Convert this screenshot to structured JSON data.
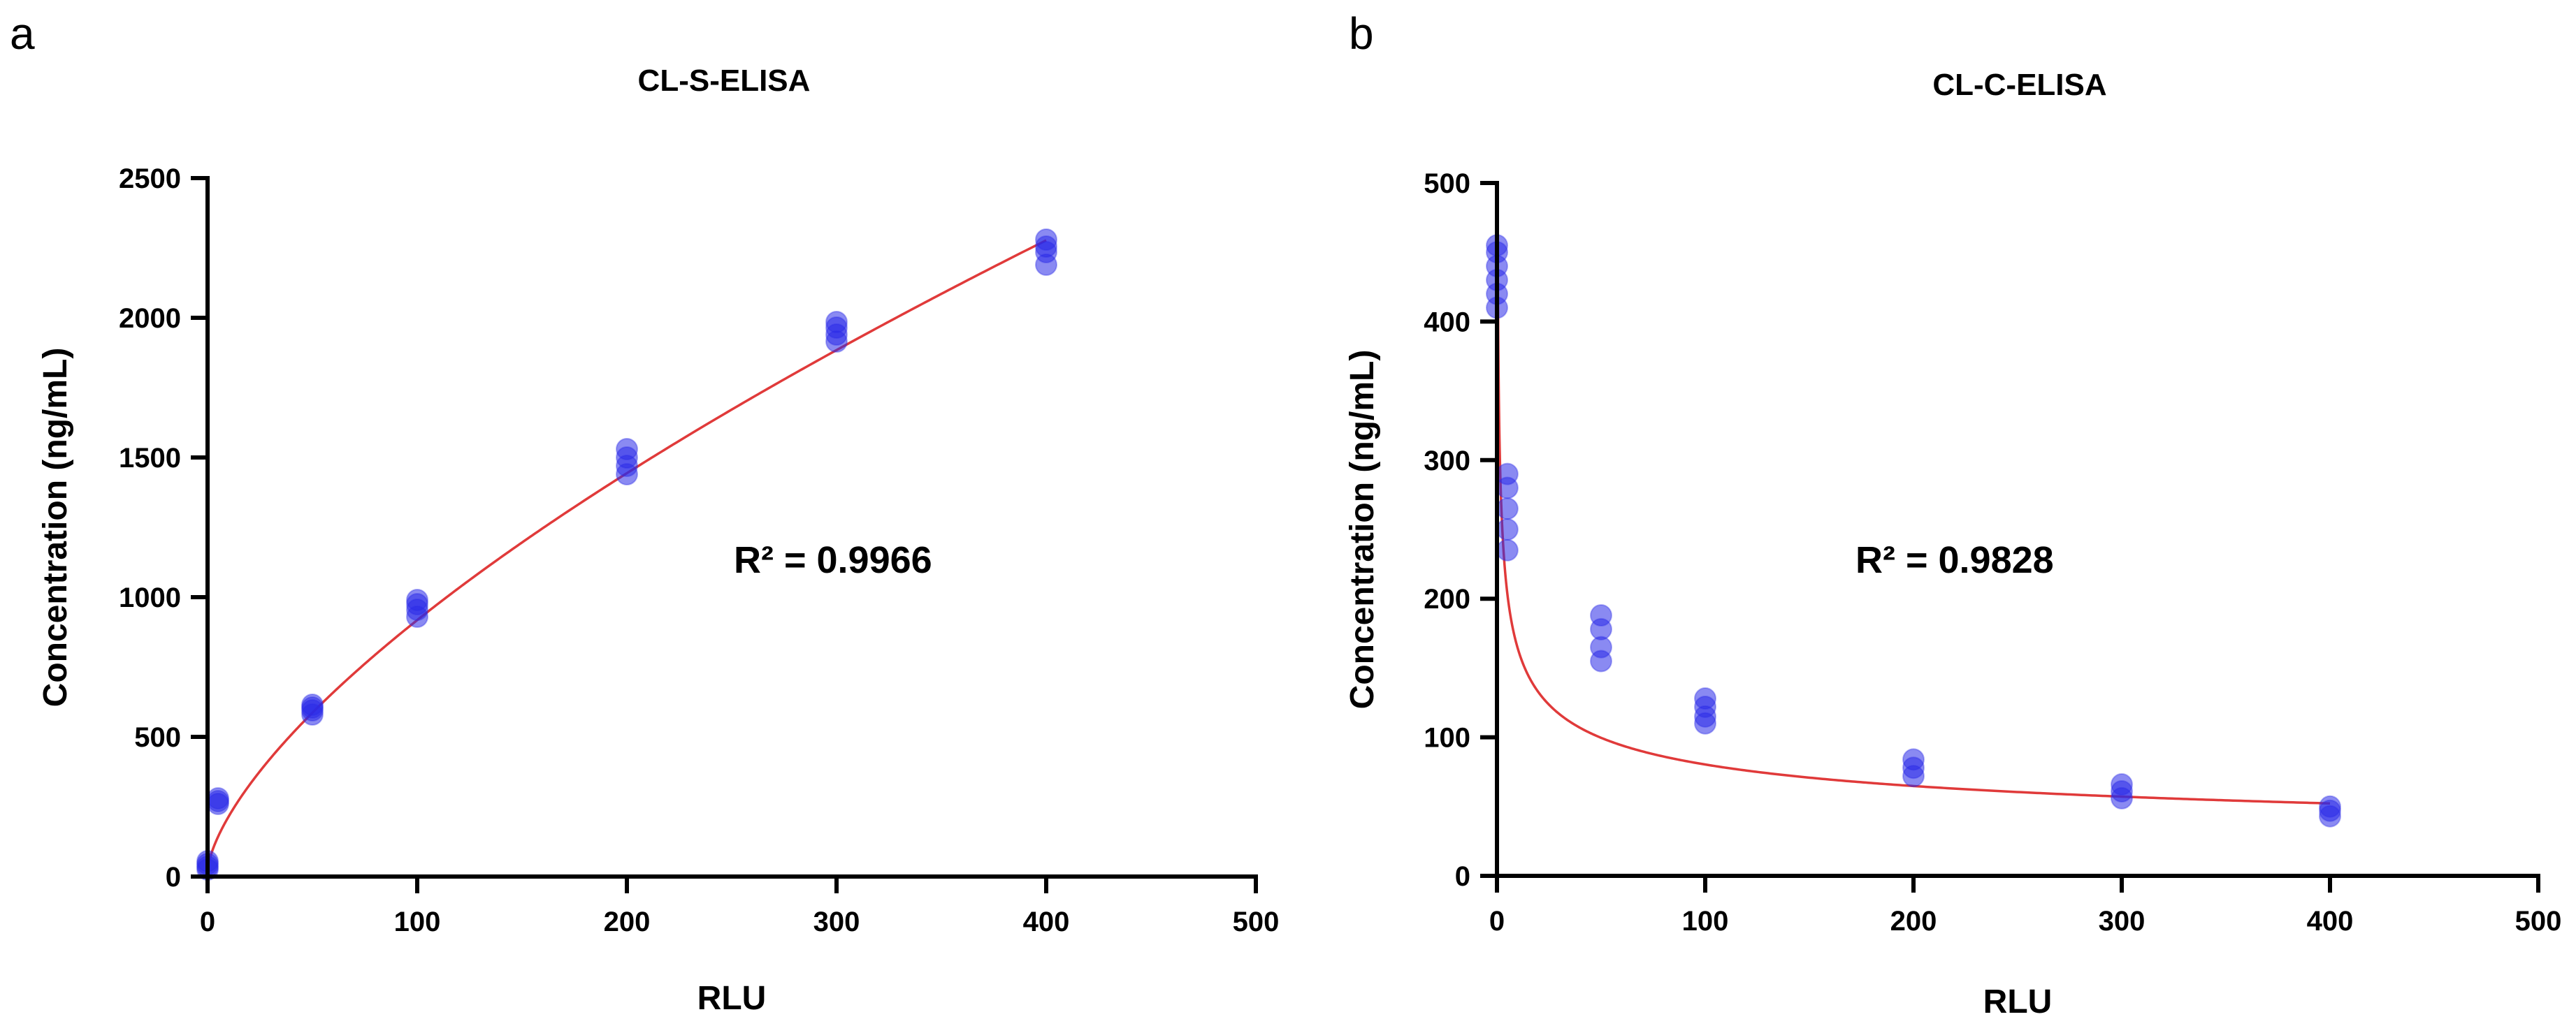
{
  "panels": {
    "a": {
      "letter": "a"
    },
    "b": {
      "letter": "b"
    }
  },
  "colors": {
    "points": "#2a2ae8",
    "fit": "#e03a3a",
    "axis": "#000000"
  },
  "chart_data": [
    {
      "type": "scatter",
      "title": "CL-S-ELISA",
      "xlabel": "RLU",
      "ylabel": "Concentration (ng/mL)",
      "xlim": [
        0,
        500
      ],
      "ylim": [
        0,
        2500
      ],
      "xticks": [
        0,
        100,
        200,
        300,
        400,
        500
      ],
      "yticks": [
        0,
        500,
        1000,
        1500,
        2000,
        2500
      ],
      "annotation": "R² = 0.9966",
      "fit": {
        "model": "power",
        "a": 42.0,
        "b": 0.665,
        "offset": 20,
        "x_range": [
          0,
          400
        ]
      },
      "series": [
        {
          "name": "replicates",
          "points": [
            [
              0,
              25
            ],
            [
              0,
              35
            ],
            [
              0,
              45
            ],
            [
              0,
              55
            ],
            [
              5,
              260
            ],
            [
              5,
              270
            ],
            [
              5,
              280
            ],
            [
              50,
              580
            ],
            [
              50,
              595
            ],
            [
              50,
              605
            ],
            [
              50,
              615
            ],
            [
              100,
              930
            ],
            [
              100,
              955
            ],
            [
              100,
              975
            ],
            [
              100,
              990
            ],
            [
              200,
              1440
            ],
            [
              200,
              1470
            ],
            [
              200,
              1500
            ],
            [
              200,
              1530
            ],
            [
              300,
              1915
            ],
            [
              300,
              1940
            ],
            [
              300,
              1965
            ],
            [
              300,
              1985
            ],
            [
              400,
              2190
            ],
            [
              400,
              2235
            ],
            [
              400,
              2255
            ],
            [
              400,
              2280
            ]
          ]
        }
      ]
    },
    {
      "type": "scatter",
      "title": "CL-C-ELISA",
      "xlabel": "RLU",
      "ylabel": "Concentration (ng/mL)",
      "xlim": [
        0,
        500
      ],
      "ylim": [
        0,
        500
      ],
      "xticks": [
        0,
        100,
        200,
        300,
        400,
        500
      ],
      "yticks": [
        0,
        100,
        200,
        300,
        400,
        500
      ],
      "annotation": "R² = 0.9828",
      "fit": {
        "model": "power",
        "a": 335.0,
        "b": -0.31,
        "offset": 0,
        "x_range": [
          0.2,
          400
        ]
      },
      "series": [
        {
          "name": "replicates",
          "points": [
            [
              0,
              410
            ],
            [
              0,
              420
            ],
            [
              0,
              430
            ],
            [
              0,
              440
            ],
            [
              0,
              450
            ],
            [
              0,
              455
            ],
            [
              5,
              235
            ],
            [
              5,
              250
            ],
            [
              5,
              265
            ],
            [
              5,
              280
            ],
            [
              5,
              290
            ],
            [
              50,
              155
            ],
            [
              50,
              165
            ],
            [
              50,
              178
            ],
            [
              50,
              188
            ],
            [
              100,
              110
            ],
            [
              100,
              115
            ],
            [
              100,
              122
            ],
            [
              100,
              128
            ],
            [
              200,
              72
            ],
            [
              200,
              78
            ],
            [
              200,
              84
            ],
            [
              300,
              56
            ],
            [
              300,
              61
            ],
            [
              300,
              66
            ],
            [
              400,
              43
            ],
            [
              400,
              47
            ],
            [
              400,
              50
            ]
          ]
        }
      ]
    }
  ]
}
